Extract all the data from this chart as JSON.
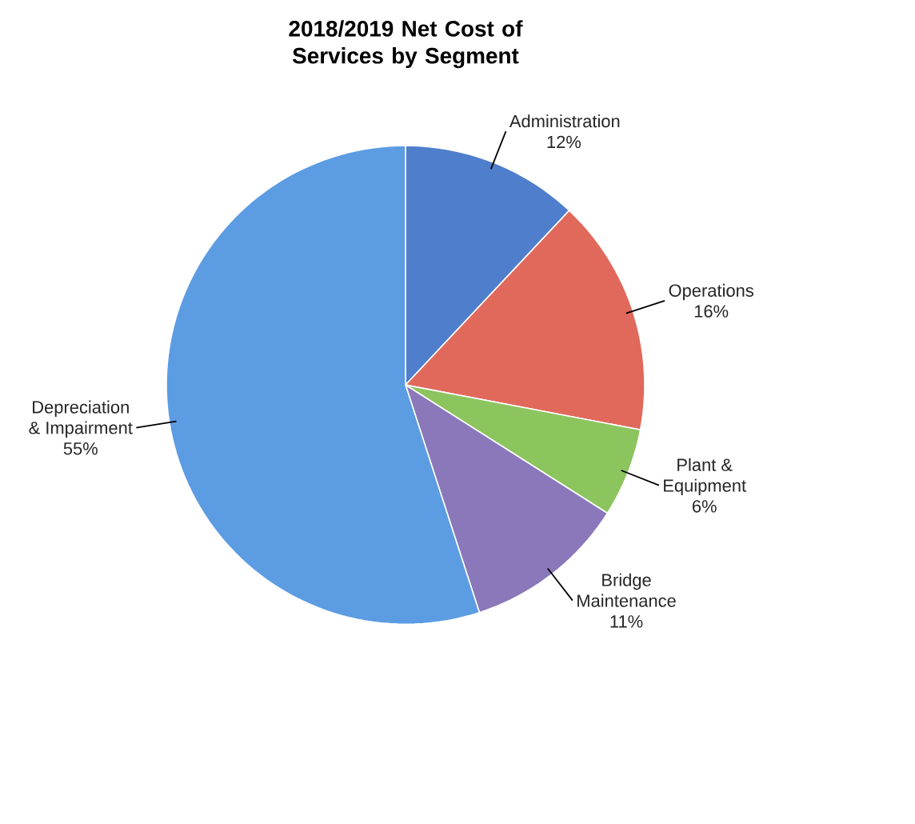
{
  "chart_data": {
    "type": "pie",
    "title": "2018/2019 Net Cost of Services by Segment",
    "categories": [
      "Administration",
      "Operations",
      "Plant & Equipment",
      "Bridge Maintenance",
      "Depreciation & Impairment"
    ],
    "values": [
      12,
      16,
      6,
      11,
      55
    ],
    "value_labels": [
      "12%",
      "16%",
      "6%",
      "11%",
      "55%"
    ],
    "colors": [
      "#4f7fcc",
      "#e0695c",
      "#8cc45e",
      "#8a78ba",
      "#5c9ce2"
    ]
  }
}
